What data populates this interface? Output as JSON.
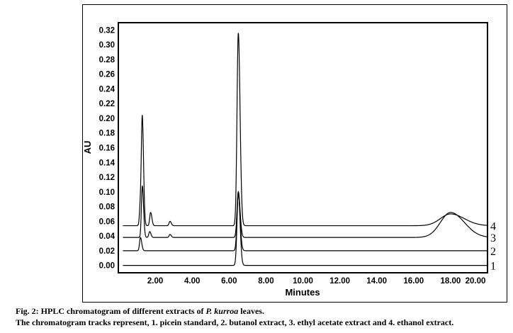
{
  "chart_data": {
    "type": "line",
    "title": "",
    "xlabel": "Minutes",
    "ylabel": "AU",
    "xlim": [
      0,
      20
    ],
    "ylim": [
      -0.01,
      0.33
    ],
    "x_ticks": [
      "2.00",
      "4.00",
      "6.00",
      "8.00",
      "10.00",
      "12.00",
      "14.00",
      "16.00",
      "18.00",
      "20.00"
    ],
    "y_ticks": [
      "0.00",
      "0.02",
      "0.04",
      "0.06",
      "0.08",
      "0.10",
      "0.12",
      "0.14",
      "0.16",
      "0.18",
      "0.20",
      "0.22",
      "0.24",
      "0.26",
      "0.28",
      "0.30",
      "0.32"
    ],
    "grid": false,
    "series": [
      {
        "name": "1",
        "baseline": 0.0,
        "peaks": [
          {
            "rt": 6.5,
            "height": 0.1
          }
        ]
      },
      {
        "name": "2",
        "baseline": 0.02,
        "peaks": [
          {
            "rt": 1.2,
            "height": 0.018
          },
          {
            "rt": 6.5,
            "height": 0.078
          }
        ]
      },
      {
        "name": "3",
        "baseline": 0.038,
        "peaks": [
          {
            "rt": 1.3,
            "height": 0.07
          },
          {
            "rt": 1.7,
            "height": 0.008
          },
          {
            "rt": 2.8,
            "height": 0.004
          },
          {
            "rt": 6.5,
            "height": 0.062
          },
          {
            "rt": 18.0,
            "height": 0.034
          }
        ]
      },
      {
        "name": "4",
        "baseline": 0.054,
        "peaks": [
          {
            "rt": 1.2,
            "height": 0.03
          },
          {
            "rt": 1.3,
            "height": 0.14
          },
          {
            "rt": 1.75,
            "height": 0.018
          },
          {
            "rt": 2.8,
            "height": 0.006
          },
          {
            "rt": 6.5,
            "height": 0.262
          },
          {
            "rt": 18.0,
            "height": 0.016
          }
        ]
      }
    ]
  },
  "caption": {
    "title_prefix": "Fig. 2: HPLC chromatogram of different extracts of ",
    "title_species": "P. kurroa",
    "title_suffix": " leaves.",
    "note": "The chromatogram tracks represent, 1. picein standard, 2. butanol extract, 3. ethyl acetate extract and 4. ethanol extract."
  }
}
